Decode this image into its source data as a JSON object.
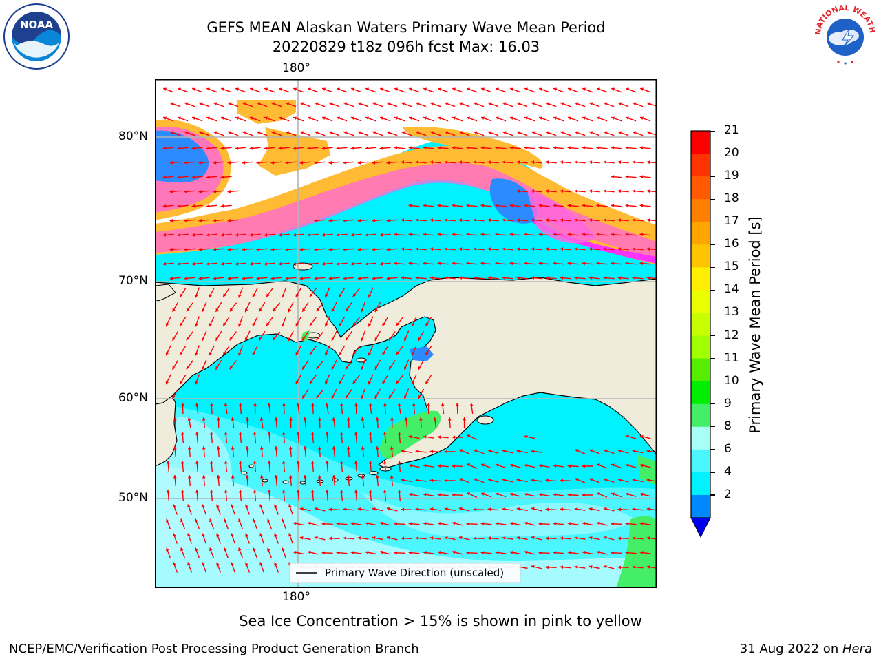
{
  "header": {
    "title_line1": "GEFS MEAN Alaskan Waters Primary Wave Mean Period",
    "title_line2": "20220829 t18z 096h fcst   Max: 16.03"
  },
  "map": {
    "lon_top_label": "180°",
    "lon_bottom_label": "180°",
    "lat_labels": [
      "80°N",
      "70°N",
      "60°N",
      "50°N"
    ],
    "legend_label": "Primary Wave Direction (unscaled)",
    "colors": {
      "land": "#efecdc",
      "ocean_light": "#b6fbff",
      "ocean_cyan": "#00f2ff",
      "ocean_mid": "#4cf6ff",
      "ocean_blue": "#2c8cff",
      "green": "#44ee66",
      "ice_magenta": "#ff33ff",
      "ice_pink": "#ffa8dc",
      "ice_orange": "#ffbb33",
      "arrow": "#ff0000",
      "grid": "#b4b4b4"
    }
  },
  "colorbar": {
    "label": "Primary Wave Mean Period [s]",
    "ticks": [
      "21",
      "20",
      "19",
      "18",
      "17",
      "16",
      "15",
      "14",
      "13",
      "12",
      "11",
      "10",
      "9",
      "8",
      "6",
      "4",
      "2"
    ],
    "colors": [
      "#ff0000",
      "#ff3300",
      "#ff5a00",
      "#ff7f00",
      "#ffa500",
      "#ffc400",
      "#ffee00",
      "#eaff00",
      "#c8ff00",
      "#a0ff00",
      "#55ee00",
      "#00ee00",
      "#44ee66",
      "#a8fff6",
      "#4cf6ff",
      "#00f2ff",
      "#0088ff"
    ],
    "extend_color": "#0000ee"
  },
  "caption": "Sea Ice Concentration > 15% is shown in pink to yellow",
  "footer": {
    "left": "NCEP/EMC/Verification Post Processing Product Generation Branch",
    "right_date": "31 Aug 2022 on ",
    "right_machine": "Hera"
  },
  "logos": {
    "noaa_text": "NOAA",
    "nws_text": "NATIONAL WEATHER SERVICE"
  }
}
